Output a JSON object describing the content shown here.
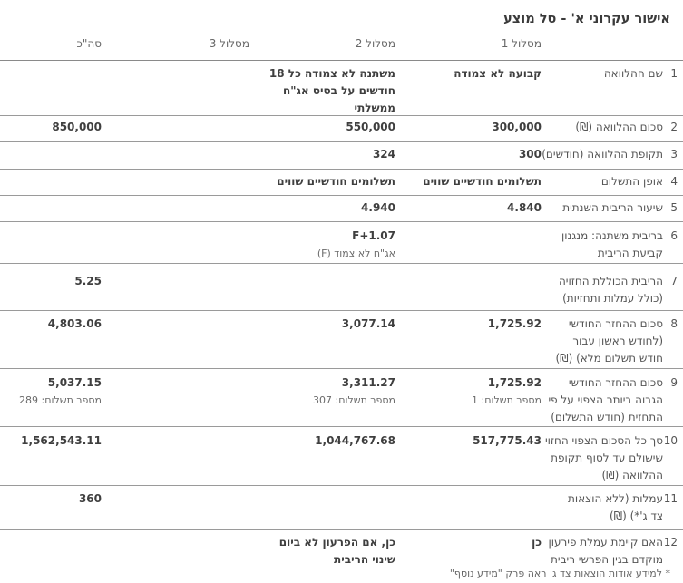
{
  "title": "אישור עקרוני א' - סל מוצע",
  "columns": {
    "track1": "מסלול 1",
    "track2": "מסלול 2",
    "track3": "מסלול 3",
    "total": "סה\"כ"
  },
  "rows": [
    {
      "num": "1",
      "label": [
        "שם ההלוואה"
      ],
      "t1": "קבועה לא צמודה",
      "t2": [
        "משתנה לא צמודה כל 18",
        "חודשים על בסיס אג\"ח",
        "ממשלתי"
      ],
      "t3": "",
      "total": ""
    },
    {
      "num": "2",
      "label": [
        "סכום ההלוואה (₪)"
      ],
      "t1": "300,000",
      "t2": "550,000",
      "t3": "",
      "total": "850,000"
    },
    {
      "num": "3",
      "label": [
        "תקופת ההלוואה (חודשים)"
      ],
      "t1": "300",
      "t2": "324",
      "t3": "",
      "total": ""
    },
    {
      "num": "4",
      "label": [
        "אופן התשלום"
      ],
      "t1": "תשלומים חודשיים שווים",
      "t2": "תשלומים חודשיים שווים",
      "t3": "",
      "total": ""
    },
    {
      "num": "5",
      "label": [
        "שיעור הריבית השנתית"
      ],
      "t1": "4.840",
      "t2": "4.940",
      "t3": "",
      "total": ""
    },
    {
      "num": "6",
      "label": [
        "בריבית משתנה: מנגנון",
        "קביעת הריבית"
      ],
      "t1": "",
      "t2": "F+1.07",
      "t2_sub": "אג\"ח לא צמוד (F)",
      "t3": "",
      "total": ""
    },
    {
      "num": "7",
      "label": [
        "הריבית הכוללת החזויה",
        "(כולל עמלות ותחזיות)"
      ],
      "t1": "",
      "t2": "",
      "t3": "",
      "total": "5.25"
    },
    {
      "num": "8",
      "label": [
        "סכום ההחזר החודשי",
        "(לחודש ראשון עבור",
        "חודש תשלום מלא) (₪)"
      ],
      "t1": "1,725.92",
      "t2": "3,077.14",
      "t3": "",
      "total": "4,803.06"
    },
    {
      "num": "9",
      "label": [
        "סכום ההחזר החודשי",
        "הגבוה ביותר הצפוי על פי",
        "התחזית (חודש התשלום)"
      ],
      "t1": "1,725.92",
      "t1_sub": "מספר תשלום: 1",
      "t2": "3,311.27",
      "t2_sub": "מספר תשלום: 307",
      "t3": "",
      "total": "5,037.15",
      "total_sub": "מספר תשלום: 289"
    },
    {
      "num": "10",
      "label": [
        "סך כל הסכום הצפוי החזוי",
        "שישולם עד לסוף תקופת",
        "ההלוואה (₪)"
      ],
      "t1": "517,775.43",
      "t2": "1,044,767.68",
      "t3": "",
      "total": "1,562,543.11"
    },
    {
      "num": "11",
      "label": [
        "עמלות (ללא הוצאות",
        "צד ג'*) (₪)"
      ],
      "t1": "",
      "t2": "",
      "t3": "",
      "total": "360"
    },
    {
      "num": "12",
      "label": [
        "האם קיימת עמלת פירעון",
        "מוקדם בגין הפרשי ריבית"
      ],
      "t1": "כן",
      "t2": [
        "כן, אם הפרעון לא ביום",
        "שינוי הריבית"
      ],
      "t3": "",
      "total": ""
    }
  ],
  "footnote": "* למידע אודות הוצאות צד ג' ראה פרק \"מידע נוסף\""
}
